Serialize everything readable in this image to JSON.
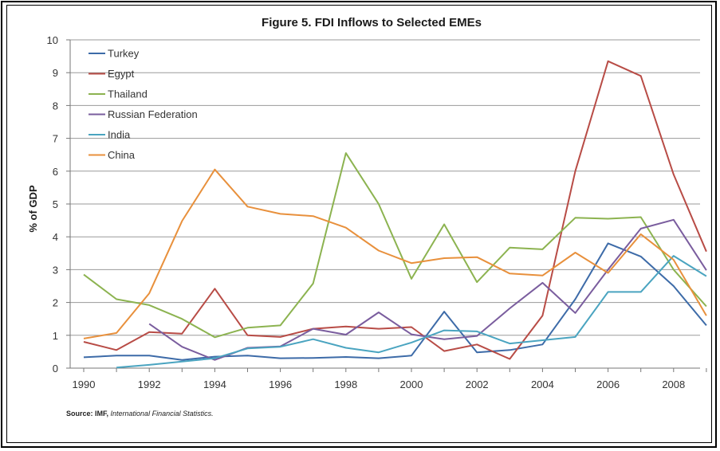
{
  "chart_data": {
    "type": "line",
    "title": "Figure 5. FDI Inflows to Selected EMEs",
    "xlabel": "",
    "ylabel": "% of GDP",
    "x": [
      1990,
      1991,
      1992,
      1993,
      1994,
      1995,
      1996,
      1997,
      1998,
      1999,
      2000,
      2001,
      2002,
      2003,
      2004,
      2005,
      2006,
      2007,
      2008,
      2009
    ],
    "xticks": [
      "1990",
      "1992",
      "1994",
      "1996",
      "1998",
      "2000",
      "2002",
      "2004",
      "2006",
      "2008"
    ],
    "yticks": [
      "0",
      "1",
      "2",
      "3",
      "4",
      "5",
      "6",
      "7",
      "8",
      "9",
      "10"
    ],
    "ylim": [
      0,
      10
    ],
    "xlim": [
      1990,
      2009
    ],
    "grid": "horizontal",
    "legend_position": "top-left",
    "series": [
      {
        "name": "Turkey",
        "color": "#3d6ba8",
        "values": [
          0.33,
          0.38,
          0.38,
          0.25,
          0.35,
          0.38,
          0.3,
          0.31,
          0.34,
          0.3,
          0.38,
          1.72,
          0.48,
          0.55,
          0.72,
          2.1,
          3.8,
          3.4,
          2.5,
          1.3
        ]
      },
      {
        "name": "Egypt",
        "color": "#b84c46",
        "values": [
          0.8,
          0.55,
          1.1,
          1.05,
          2.42,
          1.0,
          0.95,
          1.2,
          1.27,
          1.2,
          1.25,
          0.52,
          0.72,
          0.28,
          1.6,
          6.0,
          9.35,
          8.9,
          5.9,
          3.55
        ]
      },
      {
        "name": "Thailand",
        "color": "#8cb350",
        "values": [
          2.85,
          2.1,
          1.92,
          1.5,
          0.94,
          1.23,
          1.3,
          2.58,
          6.55,
          5.0,
          2.72,
          4.38,
          2.62,
          3.67,
          3.62,
          4.58,
          4.55,
          4.6,
          3.0,
          1.88
        ]
      },
      {
        "name": "Russian Federation",
        "color": "#7a5d9e",
        "values": [
          null,
          null,
          1.35,
          0.65,
          0.25,
          0.62,
          0.66,
          1.2,
          1.02,
          1.7,
          1.03,
          0.88,
          0.98,
          1.82,
          2.6,
          1.68,
          3.0,
          4.25,
          4.52,
          2.98
        ]
      },
      {
        "name": "India",
        "color": "#4aa4c0",
        "values": [
          null,
          0.02,
          0.1,
          0.2,
          0.3,
          0.6,
          0.65,
          0.88,
          0.62,
          0.48,
          0.78,
          1.15,
          1.12,
          0.75,
          0.85,
          0.95,
          2.32,
          2.32,
          3.42,
          2.8
        ]
      },
      {
        "name": "China",
        "color": "#e8903c",
        "values": [
          0.9,
          1.07,
          2.28,
          4.48,
          6.05,
          4.92,
          4.7,
          4.63,
          4.28,
          3.58,
          3.2,
          3.35,
          3.38,
          2.88,
          2.82,
          3.52,
          2.9,
          4.08,
          3.3,
          1.6
        ]
      }
    ]
  },
  "source": {
    "label": "Source: IMF,",
    "publication": "International Financial Statistics."
  }
}
